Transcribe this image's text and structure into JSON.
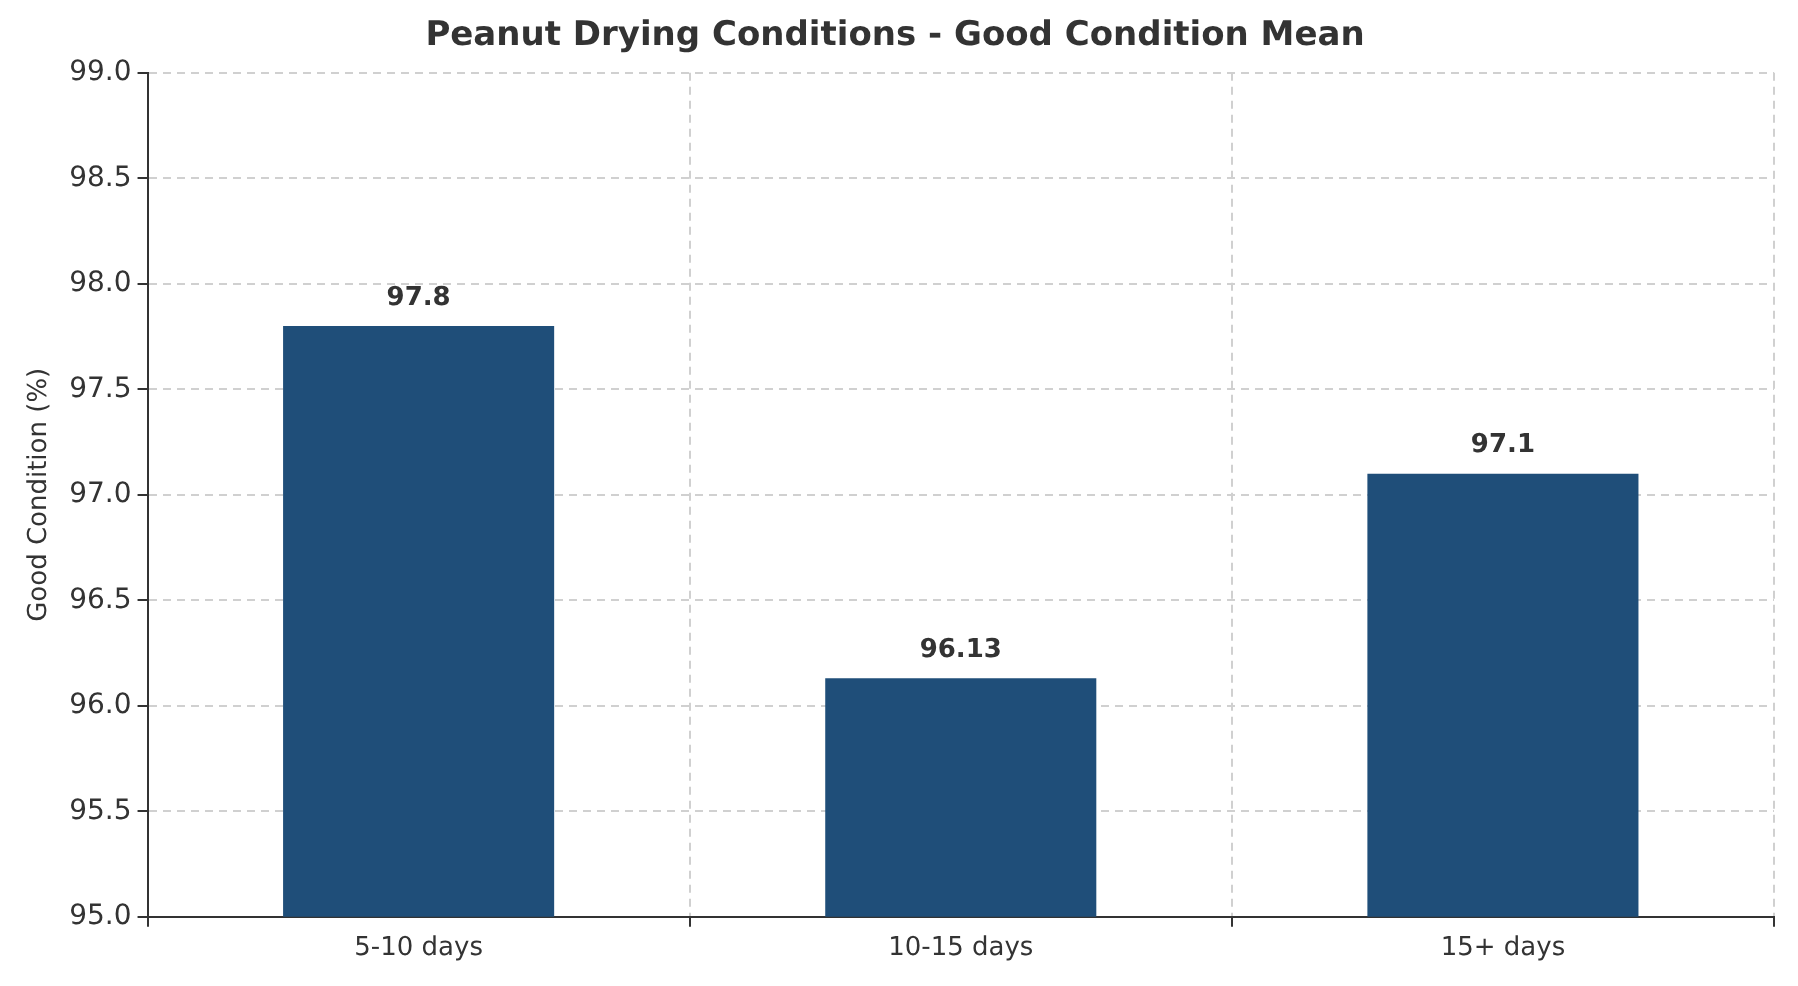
{
  "chart_data": {
    "type": "bar",
    "title": "Peanut Drying Conditions - Good Condition Mean",
    "ylabel": "Good Condition (%)",
    "categories": [
      "5-10 days",
      "10-15 days",
      "15+ days"
    ],
    "values": [
      97.8,
      96.13,
      97.1
    ],
    "color": "#1f4e79",
    "ylim": [
      95.0,
      99.0
    ],
    "yticks": [
      {
        "value": 95,
        "label": "95.0"
      },
      {
        "value": 95.5,
        "label": "95.5"
      },
      {
        "value": 96,
        "label": "96.0"
      },
      {
        "value": 96.5,
        "label": "96.5"
      },
      {
        "value": 97,
        "label": "97.0"
      },
      {
        "value": 97.5,
        "label": "97.5"
      },
      {
        "value": 98,
        "label": "98.0"
      },
      {
        "value": 98.5,
        "label": "98.5"
      },
      {
        "value": 99,
        "label": "99.0"
      }
    ],
    "grid": true,
    "data_labels": true
  }
}
